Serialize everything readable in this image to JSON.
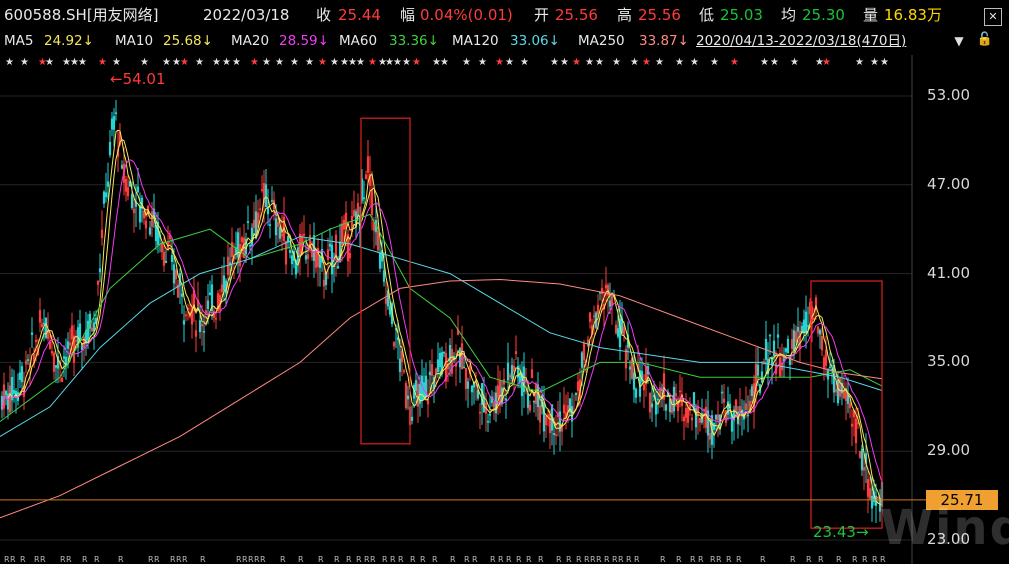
{
  "header": {
    "symbol": "600588.SH[用友网络]",
    "date": "2022/03/18",
    "close_label": "收",
    "close": "25.44",
    "change_label": "幅",
    "change": "0.04%(0.01)",
    "open_label": "开",
    "open": "25.56",
    "high_label": "高",
    "high": "25.56",
    "low_label": "低",
    "low": "25.03",
    "avg_label": "均",
    "avg": "25.30",
    "vol_label": "量",
    "vol": "16.83万"
  },
  "ma_bar": {
    "ma5": "MA5",
    "ma5_val": "24.92↓",
    "ma10": "MA10",
    "ma10_val": "25.68↓",
    "ma20": "MA20",
    "ma20_val": "28.59↓",
    "ma60": "MA60",
    "ma60_val": "33.36↓",
    "ma120": "MA120",
    "ma120_val": "33.06↓",
    "ma250": "MA250",
    "ma250_val": "33.87↓",
    "range": "2020/04/13-2022/03/18(470日)"
  },
  "icons": {
    "close": "close-icon",
    "dropdown": "chevron-down-icon",
    "lock": "lock-icon"
  },
  "labels": {
    "high_marker": "←54.01",
    "low_marker": "23.43→",
    "current_price": "25.71",
    "watermark": "Wind"
  },
  "colors": {
    "up": "#ff3b3b",
    "down": "#18c43a",
    "ma5": "#f5e65a",
    "ma10": "#f5e65a",
    "ma20": "#f03cf0",
    "ma60": "#3fd03f",
    "ma120": "#5ad8e8",
    "ma250": "#ff8a80"
  },
  "chart_data": {
    "type": "candlestick",
    "yticks": [
      "53.00",
      "47.00",
      "41.00",
      "35.00",
      "29.00",
      "23.00"
    ],
    "ylim": [
      23,
      55
    ],
    "x_range": [
      "2020/04/13",
      "2022/03/18"
    ],
    "close_path": [
      [
        0,
        32.5
      ],
      [
        18,
        33.5
      ],
      [
        30,
        35
      ],
      [
        45,
        38
      ],
      [
        58,
        35
      ],
      [
        75,
        36
      ],
      [
        95,
        38
      ],
      [
        105,
        46
      ],
      [
        115,
        52
      ],
      [
        122,
        48
      ],
      [
        135,
        46
      ],
      [
        150,
        45
      ],
      [
        170,
        42
      ],
      [
        185,
        39
      ],
      [
        200,
        38
      ],
      [
        215,
        39
      ],
      [
        232,
        42
      ],
      [
        250,
        44
      ],
      [
        265,
        46
      ],
      [
        280,
        44
      ],
      [
        295,
        42
      ],
      [
        310,
        43
      ],
      [
        325,
        41
      ],
      [
        340,
        43
      ],
      [
        355,
        44
      ],
      [
        368,
        48
      ],
      [
        380,
        42
      ],
      [
        395,
        37
      ],
      [
        410,
        32
      ],
      [
        425,
        33
      ],
      [
        440,
        35
      ],
      [
        455,
        36
      ],
      [
        470,
        34
      ],
      [
        485,
        32
      ],
      [
        500,
        33
      ],
      [
        515,
        35
      ],
      [
        530,
        33
      ],
      [
        545,
        32
      ],
      [
        560,
        31
      ],
      [
        575,
        32
      ],
      [
        590,
        37
      ],
      [
        605,
        40
      ],
      [
        620,
        37
      ],
      [
        635,
        34
      ],
      [
        650,
        33
      ],
      [
        665,
        33
      ],
      [
        680,
        32
      ],
      [
        695,
        32
      ],
      [
        710,
        31
      ],
      [
        725,
        32
      ],
      [
        740,
        31
      ],
      [
        755,
        33
      ],
      [
        770,
        36
      ],
      [
        785,
        35
      ],
      [
        800,
        37
      ],
      [
        815,
        38
      ],
      [
        825,
        35
      ],
      [
        840,
        33
      ],
      [
        855,
        31
      ],
      [
        865,
        28
      ],
      [
        875,
        25.5
      ],
      [
        882,
        25.4
      ]
    ],
    "series": [
      {
        "name": "MA5",
        "color": "#f5e65a",
        "smooth": 1
      },
      {
        "name": "MA10",
        "color": "#f5e65a",
        "smooth": 2
      },
      {
        "name": "MA20",
        "color": "#f03cf0",
        "smooth": 4
      },
      {
        "name": "MA60",
        "color": "#3fd03f",
        "points": [
          [
            0,
            31
          ],
          [
            60,
            34
          ],
          [
            110,
            40
          ],
          [
            160,
            43
          ],
          [
            210,
            44
          ],
          [
            250,
            42
          ],
          [
            300,
            43
          ],
          [
            330,
            44
          ],
          [
            370,
            45
          ],
          [
            410,
            40
          ],
          [
            450,
            38
          ],
          [
            490,
            34
          ],
          [
            540,
            33
          ],
          [
            600,
            35
          ],
          [
            640,
            35
          ],
          [
            700,
            34
          ],
          [
            760,
            34
          ],
          [
            810,
            34
          ],
          [
            850,
            34.5
          ],
          [
            882,
            33.4
          ]
        ]
      },
      {
        "name": "MA120",
        "color": "#5ad8e8",
        "points": [
          [
            0,
            30
          ],
          [
            50,
            32
          ],
          [
            100,
            36
          ],
          [
            150,
            39
          ],
          [
            200,
            41
          ],
          [
            250,
            42
          ],
          [
            300,
            43.5
          ],
          [
            350,
            43
          ],
          [
            400,
            42
          ],
          [
            450,
            41
          ],
          [
            500,
            39
          ],
          [
            550,
            37
          ],
          [
            600,
            36
          ],
          [
            650,
            35.5
          ],
          [
            700,
            35
          ],
          [
            760,
            35
          ],
          [
            800,
            34.5
          ],
          [
            840,
            34
          ],
          [
            882,
            33.1
          ]
        ]
      },
      {
        "name": "MA250",
        "color": "#ff8a80",
        "points": [
          [
            0,
            24.5
          ],
          [
            60,
            26
          ],
          [
            120,
            28
          ],
          [
            180,
            30
          ],
          [
            240,
            32.5
          ],
          [
            300,
            35
          ],
          [
            350,
            38
          ],
          [
            400,
            40
          ],
          [
            450,
            40.5
          ],
          [
            500,
            40.6
          ],
          [
            560,
            40.3
          ],
          [
            620,
            39.5
          ],
          [
            680,
            38
          ],
          [
            740,
            36.5
          ],
          [
            800,
            35
          ],
          [
            840,
            34.3
          ],
          [
            882,
            33.9
          ]
        ]
      }
    ],
    "annotations": [
      {
        "text": "54.01",
        "type": "high",
        "price": 54.01
      },
      {
        "text": "23.43",
        "type": "low",
        "price": 23.43
      },
      {
        "text": "25.71",
        "type": "current",
        "price": 25.71
      }
    ],
    "highlight_boxes": [
      {
        "price_top": 51.5,
        "price_bottom": 29.5
      },
      {
        "price_top": 40.5,
        "price_bottom": 23.8
      }
    ]
  }
}
